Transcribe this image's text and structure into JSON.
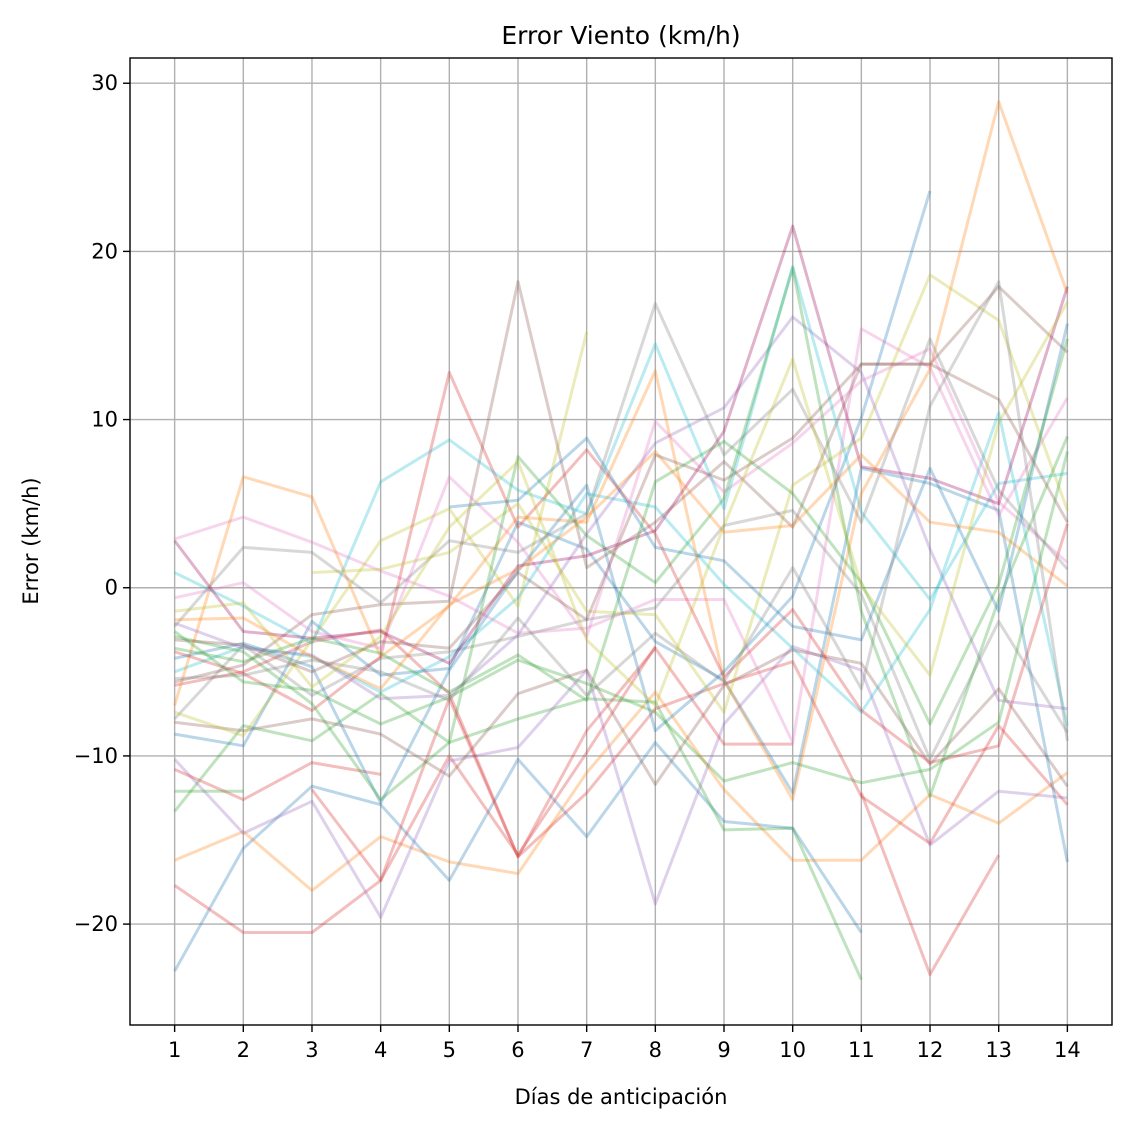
{
  "chart_data": {
    "type": "line",
    "title": "Error Viento (km/h)",
    "xlabel": "Días de anticipación",
    "ylabel": "Error (km/h)",
    "x": [
      1,
      2,
      3,
      4,
      5,
      6,
      7,
      8,
      9,
      10,
      11,
      12,
      13,
      14
    ],
    "xlim": [
      0.35,
      14.65
    ],
    "ylim": [
      -26,
      31.5
    ],
    "yticks": [
      30,
      20,
      10,
      0,
      -10,
      -20
    ],
    "ytick_labels": [
      "30",
      "20",
      "10",
      "0",
      "−10",
      "−20"
    ],
    "xtick_labels": [
      "1",
      "2",
      "3",
      "4",
      "5",
      "6",
      "7",
      "8",
      "9",
      "10",
      "11",
      "12",
      "13",
      "14"
    ],
    "grid": true,
    "legend": "none",
    "line_alpha": 0.3,
    "series": [
      {
        "color": "#1f77b4",
        "values": [
          -22.8,
          -15.5,
          -11.8,
          -12.9,
          -17.4,
          -10.2,
          -14.8,
          -9.2,
          -13.9,
          -14.3,
          -20.5,
          null,
          null,
          null
        ]
      },
      {
        "color": "#ff7f0e",
        "values": [
          -16.2,
          -14.5,
          -18.0,
          -14.8,
          -16.3,
          -17.0,
          -11.0,
          -6.2,
          -12.0,
          -16.2,
          -16.2,
          -12.3,
          -14.0,
          -11.0
        ]
      },
      {
        "color": "#d62728",
        "values": [
          -17.7,
          -20.5,
          -20.5,
          -17.4,
          -10.0,
          -15.9,
          -9.8,
          -3.5,
          null,
          null,
          -12.2,
          -23.0,
          -15.9,
          null
        ]
      },
      {
        "color": "#2ca02c",
        "values": [
          -13.3,
          -8.2,
          -9.1,
          -6.3,
          -9.2,
          -7.8,
          -6.6,
          -6.8,
          -14.4,
          -14.3,
          -23.3,
          null,
          null,
          null
        ]
      },
      {
        "color": "#9467bd",
        "values": [
          -10.2,
          -14.6,
          -12.7,
          -19.6,
          -10.3,
          -9.5,
          -4.9,
          -18.8,
          -8.1,
          -3.5,
          -4.9,
          -15.3,
          -12.1,
          -12.5
        ]
      },
      {
        "color": "#d62728",
        "values": [
          -10.8,
          -12.6,
          -10.4,
          -11.1,
          null,
          null,
          null,
          null,
          null,
          null,
          null,
          null,
          null,
          null
        ]
      },
      {
        "color": "#2ca02c",
        "values": [
          -12.1,
          -12.1,
          null,
          null,
          null,
          null,
          null,
          null,
          null,
          null,
          null,
          null,
          null,
          null
        ]
      },
      {
        "color": "#d62728",
        "values": [
          null,
          null,
          -12.0,
          -17.4,
          -6.6,
          -16.0,
          -8.5,
          -3.6,
          -9.3,
          -9.3,
          null,
          null,
          null,
          null
        ]
      },
      {
        "color": "#8c564b",
        "values": [
          -8.0,
          -8.5,
          -7.8,
          -8.7,
          -11.2,
          -6.3,
          -4.9,
          -11.7,
          -5.8,
          -3.7,
          -4.5,
          -10.5,
          -6.0,
          -11.8
        ]
      },
      {
        "color": "#d62728",
        "values": [
          -5.8,
          -5.0,
          -3.2,
          -2.5,
          -6.3,
          -16.0,
          -12.2,
          -7.2,
          -5.7,
          -4.4,
          -12.4,
          -15.2,
          -8.2,
          -12.9
        ]
      },
      {
        "color": "#1f77b4",
        "values": [
          -8.7,
          -9.4,
          -2.0,
          -5.2,
          -4.8,
          3.9,
          2.3,
          -3.2,
          -5.5,
          -12.2,
          7.1,
          6.2,
          4.6,
          -16.3
        ]
      },
      {
        "color": "#7f7f7f",
        "values": [
          -7.8,
          -3.4,
          -6.4,
          -4.2,
          -3.8,
          -2.9,
          -1.9,
          -1.2,
          3.7,
          4.6,
          -0.4,
          -10.2,
          -2.0,
          -8.6
        ]
      },
      {
        "color": "#17becf",
        "values": [
          -5.0,
          -3.5,
          -4.1,
          -6.2,
          -4.1,
          -0.6,
          5.6,
          4.8,
          0.2,
          -3.6,
          -7.4,
          -1.3,
          10.4,
          -8.2
        ]
      },
      {
        "color": "#bcbd22",
        "values": [
          -7.4,
          -8.8,
          -3.1,
          2.8,
          4.7,
          -1.1,
          15.2,
          null,
          null,
          null,
          null,
          null,
          null,
          null
        ]
      },
      {
        "color": "#e377c2",
        "values": [
          2.9,
          4.2,
          2.7,
          1.0,
          -0.5,
          -2.7,
          -2.4,
          -0.7,
          -0.7,
          -9.2,
          15.4,
          13.1,
          4.3,
          11.3
        ]
      },
      {
        "color": "#ff7f0e",
        "values": [
          -7.0,
          6.6,
          5.4,
          -4.1,
          -1.1,
          4.2,
          3.9,
          12.9,
          -5.5,
          -12.6,
          5.6,
          13.0,
          28.9,
          17.5
        ]
      },
      {
        "color": "#d62728",
        "values": [
          -3.8,
          -5.1,
          -7.3,
          -4.1,
          12.8,
          3.6,
          8.2,
          3.2,
          -5.3,
          -1.3,
          -7.3,
          -10.4,
          -9.4,
          3.8
        ]
      },
      {
        "color": "#1f77b4",
        "values": [
          -4.2,
          -3.3,
          -4.7,
          -12.8,
          -4.9,
          1.0,
          6.1,
          -8.5,
          -5.0,
          -0.5,
          10.1,
          23.6,
          null,
          null
        ]
      },
      {
        "color": "#bcbd22",
        "values": [
          null,
          null,
          0.9,
          1.1,
          2.1,
          5.0,
          -1.4,
          -1.6,
          -7.4,
          6.1,
          8.9,
          18.6,
          15.9,
          4.6
        ]
      },
      {
        "color": "#9467bd",
        "values": [
          -2.1,
          -3.6,
          -4.0,
          -6.6,
          -6.4,
          -2.8,
          3.2,
          8.6,
          10.7,
          16.1,
          12.8,
          2.3,
          -6.7,
          -7.2
        ]
      },
      {
        "color": "#8c564b",
        "values": [
          -5.6,
          -4.6,
          -1.6,
          -1.0,
          -0.8,
          18.2,
          1.2,
          3.9,
          7.5,
          3.6,
          13.3,
          13.3,
          17.9,
          14.0
        ]
      },
      {
        "color": "#e377c2",
        "values": [
          -0.6,
          0.3,
          -2.6,
          -3.6,
          6.6,
          2.7,
          -2.9,
          9.9,
          5.7,
          8.6,
          12.3,
          14.2,
          5.1,
          1.5
        ]
      },
      {
        "color": "#17becf",
        "values": [
          0.9,
          -1.1,
          -3.3,
          6.3,
          8.8,
          5.8,
          4.4,
          14.5,
          4.7,
          19.1,
          4.5,
          -0.7,
          6.2,
          6.8
        ]
      },
      {
        "color": "#2ca02c",
        "values": [
          -2.9,
          -3.8,
          -6.9,
          -12.6,
          -9.2,
          7.8,
          3.1,
          0.3,
          5.3,
          19.0,
          -1.4,
          -12.4,
          -0.7,
          9.0
        ]
      },
      {
        "color": "#7f7f7f",
        "values": [
          -2.3,
          2.4,
          2.1,
          -0.9,
          2.8,
          2.1,
          4.4,
          16.9,
          7.9,
          11.8,
          3.9,
          14.8,
          5.8,
          1.1
        ]
      },
      {
        "color": "#990055",
        "values": [
          2.8,
          -2.6,
          -3.0,
          -2.6,
          -4.5,
          1.3,
          1.9,
          3.4,
          9.3,
          21.5,
          7.2,
          6.5,
          5.0,
          17.9
        ]
      },
      {
        "color": "#1f77b4",
        "values": [
          null,
          null,
          null,
          null,
          4.8,
          5.2,
          8.9,
          2.4,
          1.6,
          -2.3,
          -3.1,
          7.1,
          -1.4,
          15.7
        ]
      },
      {
        "color": "#2ca02c",
        "values": [
          -3.6,
          -4.4,
          -3.0,
          -3.9,
          -6.2,
          -4.0,
          -6.7,
          6.3,
          8.7,
          5.6,
          0.3,
          -8.1,
          0.2,
          14.8
        ]
      },
      {
        "color": "#ff7f0e",
        "values": [
          -1.9,
          -1.8,
          -4.1,
          -6.0,
          -1.0,
          1.1,
          4.2,
          8.1,
          3.3,
          3.7,
          7.9,
          3.9,
          3.3,
          0.1
        ]
      },
      {
        "color": "#7f7f7f",
        "values": [
          -5.4,
          -5.2,
          -4.3,
          -5.0,
          -6.7,
          -1.8,
          -6.4,
          -2.7,
          -5.6,
          1.2,
          -6.0,
          10.8,
          18.2,
          -9.1
        ]
      },
      {
        "color": "#bcbd22",
        "values": [
          -1.4,
          -0.9,
          -5.9,
          -2.9,
          3.6,
          7.5,
          -3.1,
          -7.0,
          3.7,
          13.6,
          0.1,
          -5.2,
          9.8,
          17.0
        ]
      },
      {
        "color": "#8c564b",
        "values": [
          -3.1,
          -3.4,
          -5.0,
          -3.2,
          -3.6,
          0.9,
          -1.9,
          7.9,
          6.4,
          8.9,
          13.3,
          13.3,
          11.2,
          3.9
        ]
      },
      {
        "color": "#2ca02c",
        "values": [
          -2.6,
          -5.6,
          -6.1,
          -8.1,
          -6.5,
          -4.3,
          -5.7,
          -7.4,
          -11.5,
          -10.4,
          -11.6,
          -10.8,
          -8.0,
          8.1
        ]
      }
    ]
  }
}
